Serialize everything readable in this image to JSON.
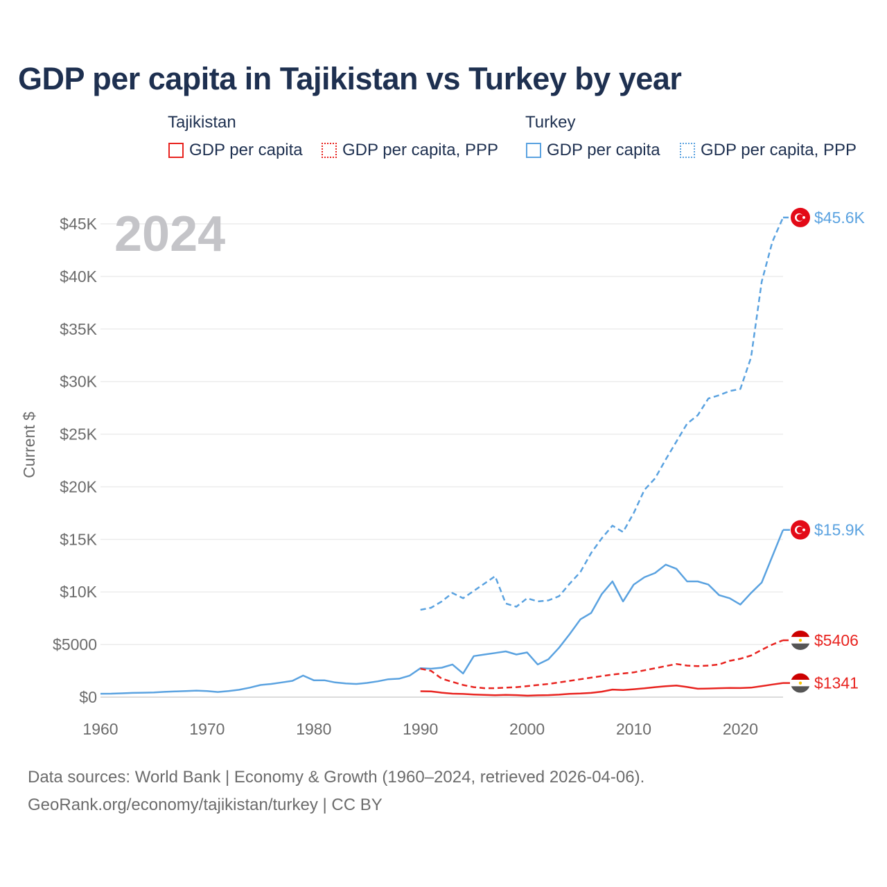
{
  "title": "GDP per capita in Tajikistan vs Turkey by year",
  "legend": {
    "groups": [
      {
        "name": "Tajikistan",
        "color": "#e8231f",
        "items": [
          {
            "label": "GDP per capita",
            "style": "solid"
          },
          {
            "label": "GDP per capita, PPP",
            "style": "dotted"
          }
        ]
      },
      {
        "name": "Turkey",
        "color": "#5aa2e0",
        "items": [
          {
            "label": "GDP per capita",
            "style": "solid"
          },
          {
            "label": "GDP per capita, PPP",
            "style": "dotted"
          }
        ]
      }
    ]
  },
  "chart_data": {
    "type": "line",
    "title": "GDP per capita in Tajikistan vs Turkey by year",
    "year_label": "2024",
    "ylabel": "Current $",
    "xlabel": "",
    "xlim": [
      1960,
      2024
    ],
    "ylim": [
      0,
      45000
    ],
    "grid": true,
    "x_ticks": [
      1960,
      1970,
      1980,
      1990,
      2000,
      2010,
      2020
    ],
    "x_tick_labels": [
      "1960",
      "1970",
      "1980",
      "1990",
      "2000",
      "2010",
      "2020"
    ],
    "y_ticks": [
      0,
      5000,
      10000,
      15000,
      20000,
      25000,
      30000,
      35000,
      40000,
      45000
    ],
    "y_tick_labels": [
      "$0",
      "$5000",
      "$10K",
      "$15K",
      "$20K",
      "$25K",
      "$30K",
      "$35K",
      "$40K",
      "$45K"
    ],
    "series": [
      {
        "name": "Turkey GDP per capita, PPP",
        "country": "Turkey",
        "color": "#5aa2e0",
        "dash": "dashed",
        "end_label": "$45.6K",
        "flag": "turkey",
        "x": [
          1990,
          1991,
          1992,
          1993,
          1994,
          1995,
          1996,
          1997,
          1998,
          1999,
          2000,
          2001,
          2002,
          2003,
          2004,
          2005,
          2006,
          2007,
          2008,
          2009,
          2010,
          2011,
          2012,
          2013,
          2014,
          2015,
          2016,
          2017,
          2018,
          2019,
          2020,
          2021,
          2022,
          2023,
          2024
        ],
        "values": [
          8300,
          8500,
          9100,
          9900,
          9400,
          10100,
          10800,
          11500,
          8900,
          8600,
          9400,
          9100,
          9200,
          9600,
          10800,
          11900,
          13700,
          15100,
          16300,
          15700,
          17500,
          19700,
          20800,
          22600,
          24300,
          26000,
          26800,
          28400,
          28700,
          29100,
          29300,
          32300,
          39500,
          43300,
          45600
        ]
      },
      {
        "name": "Turkey GDP per capita",
        "country": "Turkey",
        "color": "#5aa2e0",
        "dash": "solid",
        "end_label": "$15.9K",
        "flag": "turkey",
        "x": [
          1960,
          1961,
          1962,
          1963,
          1964,
          1965,
          1966,
          1967,
          1968,
          1969,
          1970,
          1971,
          1972,
          1973,
          1974,
          1975,
          1976,
          1977,
          1978,
          1979,
          1980,
          1981,
          1982,
          1983,
          1984,
          1985,
          1986,
          1987,
          1988,
          1989,
          1990,
          1991,
          1992,
          1993,
          1994,
          1995,
          1996,
          1997,
          1998,
          1999,
          2000,
          2001,
          2002,
          2003,
          2004,
          2005,
          2006,
          2007,
          2008,
          2009,
          2010,
          2011,
          2012,
          2013,
          2014,
          2015,
          2016,
          2017,
          2018,
          2019,
          2020,
          2021,
          2022,
          2023,
          2024
        ],
        "values": [
          320,
          330,
          360,
          400,
          420,
          440,
          500,
          540,
          570,
          620,
          580,
          490,
          580,
          700,
          900,
          1150,
          1250,
          1400,
          1550,
          2050,
          1600,
          1600,
          1400,
          1300,
          1250,
          1350,
          1500,
          1700,
          1750,
          2050,
          2750,
          2700,
          2800,
          3100,
          2250,
          3900,
          4050,
          4200,
          4350,
          4050,
          4250,
          3100,
          3600,
          4700,
          6000,
          7400,
          8000,
          9800,
          11000,
          9100,
          10700,
          11400,
          11800,
          12600,
          12200,
          11000,
          11000,
          10700,
          9700,
          9400,
          8800,
          9900,
          10900,
          13400,
          15900
        ]
      },
      {
        "name": "Tajikistan GDP per capita, PPP",
        "country": "Tajikistan",
        "color": "#e8231f",
        "dash": "dashed",
        "end_label": "$5406",
        "flag": "tajikistan",
        "x": [
          1990,
          1991,
          1992,
          1993,
          1994,
          1995,
          1996,
          1997,
          1998,
          1999,
          2000,
          2001,
          2002,
          2003,
          2004,
          2005,
          2006,
          2007,
          2008,
          2009,
          2010,
          2011,
          2012,
          2013,
          2014,
          2015,
          2016,
          2017,
          2018,
          2019,
          2020,
          2021,
          2022,
          2023,
          2024
        ],
        "values": [
          2700,
          2500,
          1750,
          1450,
          1150,
          950,
          850,
          850,
          900,
          950,
          1050,
          1150,
          1250,
          1400,
          1550,
          1700,
          1850,
          2000,
          2150,
          2250,
          2350,
          2550,
          2750,
          2950,
          3150,
          3000,
          2950,
          3000,
          3100,
          3450,
          3650,
          3950,
          4500,
          5000,
          5406
        ]
      },
      {
        "name": "Tajikistan GDP per capita",
        "country": "Tajikistan",
        "color": "#e8231f",
        "dash": "solid",
        "end_label": "$1341",
        "flag": "tajikistan",
        "x": [
          1990,
          1991,
          1992,
          1993,
          1994,
          1995,
          1996,
          1997,
          1998,
          1999,
          2000,
          2001,
          2002,
          2003,
          2004,
          2005,
          2006,
          2007,
          2008,
          2009,
          2010,
          2011,
          2012,
          2013,
          2014,
          2015,
          2016,
          2017,
          2018,
          2019,
          2020,
          2021,
          2022,
          2023,
          2024
        ],
        "values": [
          560,
          540,
          420,
          330,
          300,
          250,
          210,
          180,
          220,
          190,
          140,
          170,
          190,
          240,
          310,
          340,
          400,
          520,
          720,
          670,
          750,
          840,
          950,
          1040,
          1100,
          960,
          800,
          820,
          850,
          870,
          860,
          900,
          1050,
          1200,
          1341
        ]
      }
    ]
  },
  "footer": {
    "line1": "Data sources: World Bank | Economy & Growth (1960–2024, retrieved 2026-04-06).",
    "line2": "GeoRank.org/economy/tajikistan/turkey | CC BY"
  }
}
